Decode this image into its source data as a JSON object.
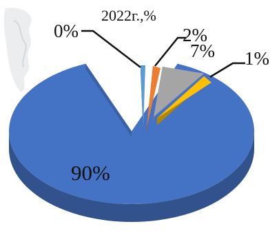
{
  "chart_data": {
    "type": "pie",
    "title": "2022г.,%",
    "slices": [
      {
        "label": "90%",
        "value": 90,
        "color": "#4472C4"
      },
      {
        "label": "0%",
        "value": 0.4,
        "color": "#5B9BD5"
      },
      {
        "label": "2%",
        "value": 2,
        "color": "#ED7D31"
      },
      {
        "label": "7%",
        "value": 7,
        "color": "#A5A5A5"
      },
      {
        "label": "1%",
        "value": 1,
        "color": "#FFC000"
      }
    ],
    "legend": "none"
  }
}
